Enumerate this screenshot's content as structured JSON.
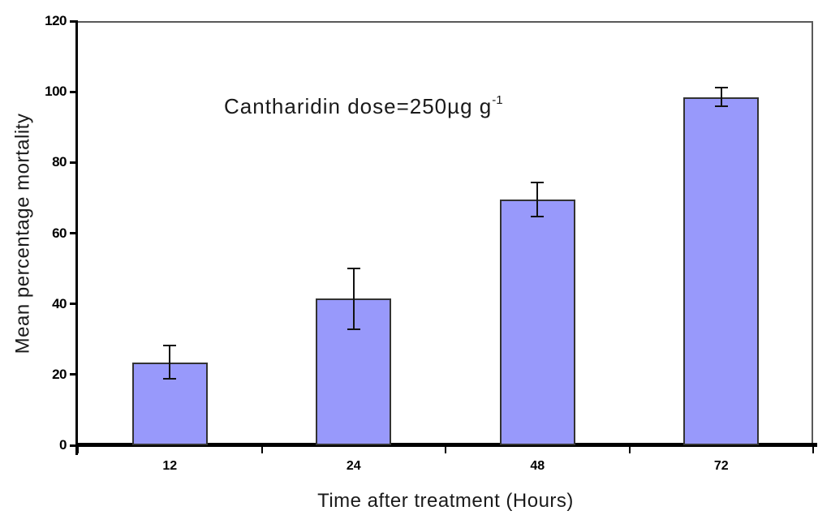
{
  "chart_data": {
    "type": "bar",
    "title": "",
    "annotation": {
      "text": "Cantharidin dose=250µg g",
      "superscript": "-1"
    },
    "xlabel": "Time after treatment (Hours)",
    "ylabel": "Mean percentage mortality",
    "categories": [
      "12",
      "24",
      "48",
      "72"
    ],
    "values": [
      23.5,
      41.5,
      69.5,
      98.5
    ],
    "errors": [
      4.7,
      8.6,
      4.8,
      2.6
    ],
    "ylim": [
      0,
      120
    ],
    "yticks": [
      0,
      20,
      40,
      60,
      80,
      100,
      120
    ],
    "grid": false,
    "legend_position": "none",
    "colors": {
      "bar_fill": "#9899fb",
      "bar_border": "#333333",
      "axis": "#000000",
      "frame": "#595959",
      "error_bar": "#111111",
      "background": "#ffffff",
      "text": "#1a1a1a"
    }
  }
}
